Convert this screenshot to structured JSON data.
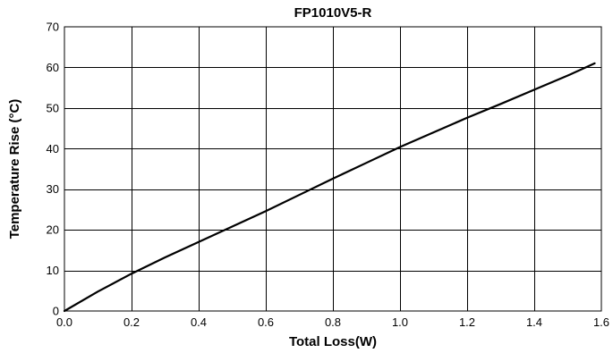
{
  "chart_data": {
    "type": "line",
    "title": "FP1010V5-R",
    "xlabel": "Total Loss(W)",
    "ylabel": "Temperature Rise (°C)",
    "xlim": [
      0.0,
      1.6
    ],
    "ylim": [
      0,
      70
    ],
    "xticks": [
      "0.0",
      "0.2",
      "0.4",
      "0.6",
      "0.8",
      "1.0",
      "1.2",
      "1.4",
      "1.6"
    ],
    "yticks": [
      "0",
      "10",
      "20",
      "30",
      "40",
      "50",
      "60",
      "70"
    ],
    "grid": true,
    "series": [
      {
        "x": [
          0.0,
          0.1,
          0.2,
          0.3,
          0.4,
          0.5,
          0.6,
          0.7,
          0.8,
          0.9,
          1.0,
          1.1,
          1.2,
          1.3,
          1.4,
          1.5,
          1.58
        ],
        "y": [
          0.0,
          4.8,
          9.2,
          13.2,
          17.0,
          20.8,
          24.6,
          28.6,
          32.6,
          36.5,
          40.4,
          44.0,
          47.6,
          51.0,
          54.5,
          58.0,
          61.0
        ]
      }
    ]
  }
}
